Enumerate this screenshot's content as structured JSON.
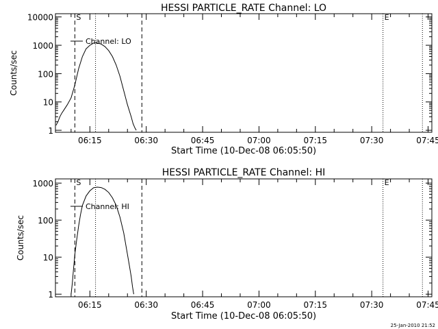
{
  "footer_timestamp": "25-Jan-2010 21:52",
  "chart_data": [
    {
      "type": "line",
      "title": "HESSI PARTICLE_RATE Channel: LO",
      "xlabel": "Start Time (10-Dec-08 06:05:50)",
      "ylabel": "Counts/sec",
      "yscale": "log",
      "xlim": [
        "06:05:50",
        "07:46:00"
      ],
      "ylim": [
        0.85,
        13000
      ],
      "x_ticks": [
        "06:15",
        "06:30",
        "06:45",
        "07:00",
        "07:15",
        "07:30",
        "07:45"
      ],
      "y_ticks": [
        "1",
        "10",
        "100",
        "1000",
        "10000"
      ],
      "legend": "Channel: LO",
      "legend_position": "top-left",
      "markers": [
        {
          "label": "S",
          "time": "06:11:00",
          "style": "dashed"
        },
        {
          "label": "",
          "time": "06:16:30",
          "style": "dotted"
        },
        {
          "label": "",
          "time": "06:28:50",
          "style": "dashed"
        },
        {
          "label": "E",
          "time": "07:33:00",
          "style": "dotted"
        },
        {
          "label": "",
          "time": "07:43:30",
          "style": "dotted"
        }
      ],
      "series": [
        {
          "name": "Channel: LO",
          "x": [
            "06:06:00",
            "06:06:30",
            "06:07:00",
            "06:07:30",
            "06:08:00",
            "06:09:00",
            "06:10:00",
            "06:11:00",
            "06:12:00",
            "06:13:00",
            "06:14:00",
            "06:15:00",
            "06:16:00",
            "06:17:00",
            "06:18:00",
            "06:19:00",
            "06:20:00",
            "06:21:00",
            "06:22:00",
            "06:23:00",
            "06:24:00",
            "06:25:00",
            "06:26:00",
            "06:26:30",
            "06:27:00",
            "06:27:20"
          ],
          "y": [
            1.5,
            2,
            3,
            4,
            5,
            8,
            14,
            40,
            150,
            400,
            750,
            1000,
            1200,
            1200,
            1100,
            900,
            650,
            400,
            200,
            80,
            25,
            8,
            3,
            1.7,
            1.2,
            1
          ]
        }
      ]
    },
    {
      "type": "line",
      "title": "HESSI PARTICLE_RATE Channel: HI",
      "xlabel": "Start Time (10-Dec-08 06:05:50)",
      "ylabel": "Counts/sec",
      "yscale": "log",
      "xlim": [
        "06:05:50",
        "07:46:00"
      ],
      "ylim": [
        0.85,
        1300
      ],
      "x_ticks": [
        "06:15",
        "06:30",
        "06:45",
        "07:00",
        "07:15",
        "07:30",
        "07:45"
      ],
      "y_ticks": [
        "1",
        "10",
        "100",
        "1000"
      ],
      "legend": "Channel: HI",
      "legend_position": "top-left",
      "markers": [
        {
          "label": "S",
          "time": "06:11:00",
          "style": "dashed"
        },
        {
          "label": "",
          "time": "06:16:30",
          "style": "dotted"
        },
        {
          "label": "",
          "time": "06:28:50",
          "style": "dashed"
        },
        {
          "label": "E",
          "time": "07:33:00",
          "style": "dotted"
        },
        {
          "label": "",
          "time": "07:43:30",
          "style": "dotted"
        }
      ],
      "series": [
        {
          "name": "Channel: HI",
          "x": [
            "06:10:00",
            "06:10:20",
            "06:10:40",
            "06:11:00",
            "06:11:30",
            "06:12:00",
            "06:12:30",
            "06:13:00",
            "06:14:00",
            "06:15:00",
            "06:16:00",
            "06:17:00",
            "06:18:00",
            "06:19:00",
            "06:20:00",
            "06:21:00",
            "06:22:00",
            "06:23:00",
            "06:24:00",
            "06:25:00",
            "06:25:30",
            "06:26:00",
            "06:26:20",
            "06:26:40"
          ],
          "y": [
            1,
            2,
            5,
            12,
            30,
            70,
            140,
            250,
            450,
            620,
            750,
            780,
            760,
            680,
            560,
            400,
            250,
            120,
            45,
            12,
            6,
            3,
            1.6,
            1
          ]
        }
      ]
    }
  ]
}
